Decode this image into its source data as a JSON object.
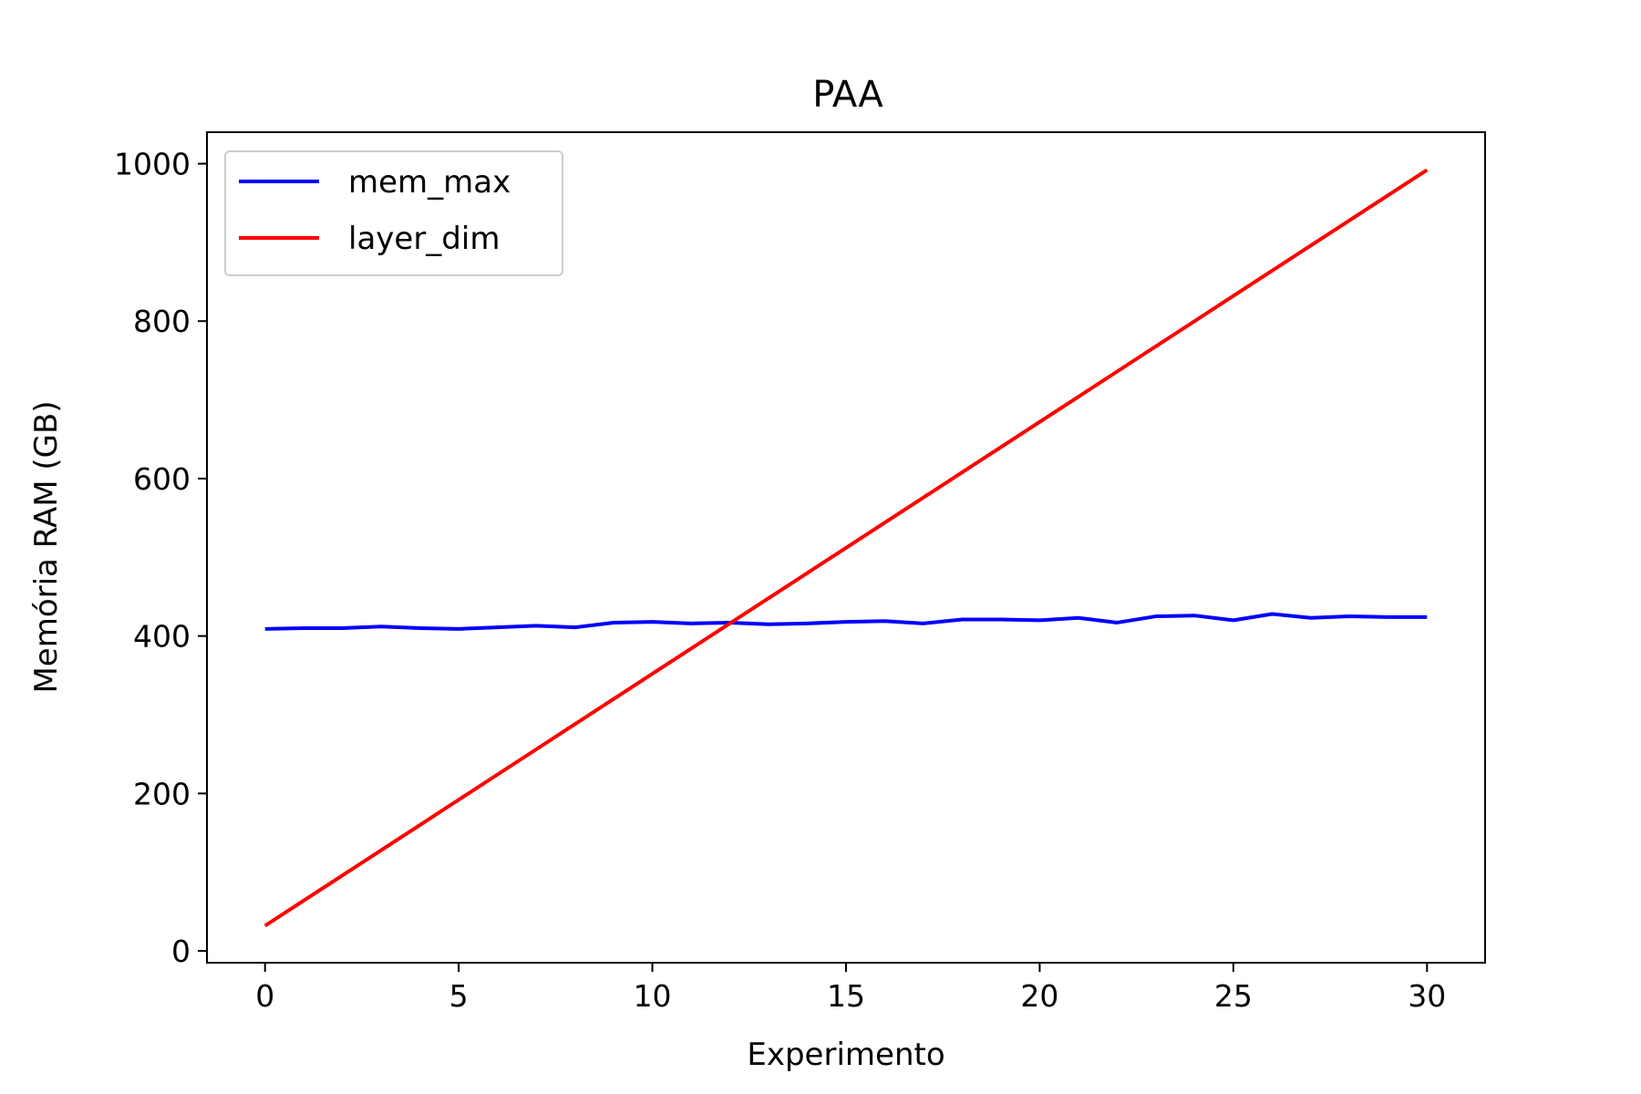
{
  "chart_data": {
    "type": "line",
    "title": "PAA",
    "xlabel": "Experimento",
    "ylabel": "Memória RAM (GB)",
    "xlim": [
      -1.5,
      31.5
    ],
    "ylim": [
      -15,
      1040
    ],
    "x_ticks": [
      0,
      5,
      10,
      15,
      20,
      25,
      30
    ],
    "y_ticks": [
      0,
      200,
      400,
      600,
      800,
      1000
    ],
    "x": [
      0,
      1,
      2,
      3,
      4,
      5,
      6,
      7,
      8,
      9,
      10,
      11,
      12,
      13,
      14,
      15,
      16,
      17,
      18,
      19,
      20,
      21,
      22,
      23,
      24,
      25,
      26,
      27,
      28,
      29,
      30
    ],
    "grid": false,
    "legend_position": "upper-left",
    "series": [
      {
        "name": "mem_max",
        "color": "#0000ff",
        "values": [
          409,
          410,
          410,
          412,
          410,
          409,
          411,
          413,
          411,
          417,
          418,
          416,
          417,
          415,
          416,
          418,
          419,
          416,
          421,
          421,
          420,
          423,
          417,
          425,
          426,
          420,
          428,
          423,
          425,
          424,
          424
        ]
      },
      {
        "name": "layer_dim",
        "color": "#ff0000",
        "values": [
          32,
          64,
          96,
          128,
          160,
          192,
          224,
          256,
          288,
          320,
          352,
          384,
          416,
          448,
          480,
          512,
          544,
          576,
          608,
          640,
          672,
          704,
          736,
          768,
          800,
          832,
          864,
          896,
          928,
          960,
          992
        ]
      }
    ]
  }
}
